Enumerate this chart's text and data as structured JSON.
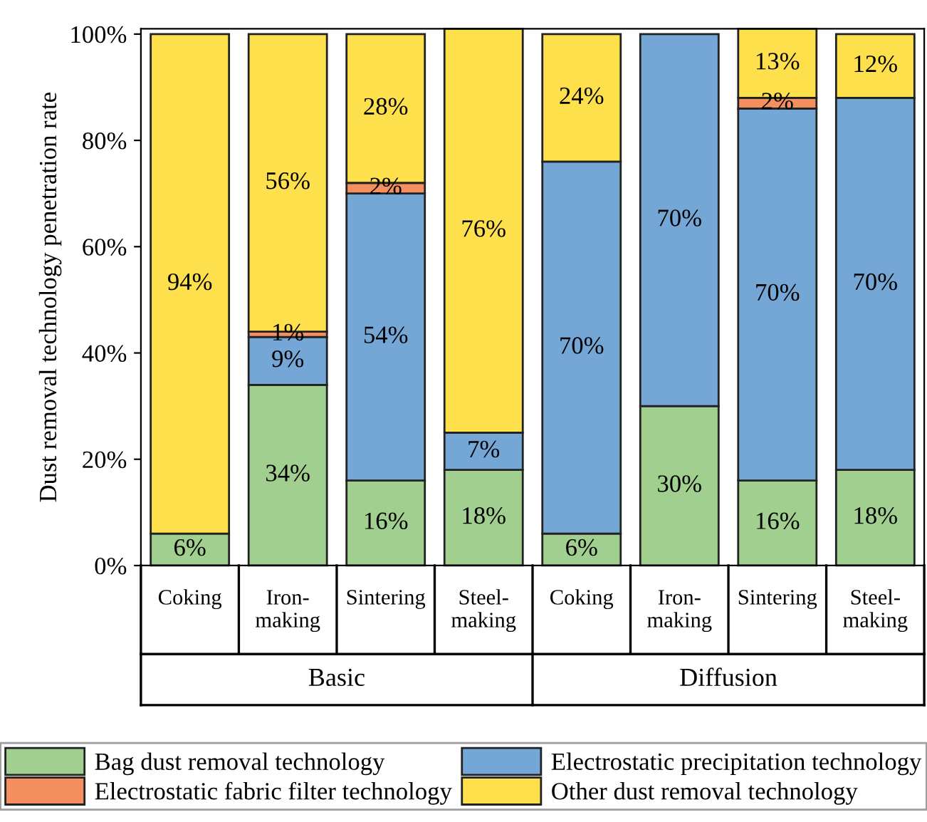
{
  "chart_data": {
    "type": "bar",
    "stacked": true,
    "ylabel": "Dust removal technology penetration rate",
    "categories": [
      "Coking",
      "Iron-\nmaking",
      "Sintering",
      "Steel-\nmaking",
      "Coking",
      "Iron-\nmaking",
      "Sintering",
      "Steel-\nmaking"
    ],
    "annotations": [
      "Basic",
      "Diffusion"
    ],
    "series": [
      {
        "name": "Bag dust removal technology",
        "color": "#a1cf8f",
        "values": [
          6,
          34,
          16,
          18,
          6,
          30,
          16,
          18
        ],
        "value_labels": [
          "6%",
          "34%",
          "16%",
          "18%",
          "6%",
          "30%",
          "16%",
          "18%"
        ]
      },
      {
        "name": "Electrostatic precipitation technology",
        "color": "#74a7d6",
        "values": [
          0,
          9,
          54,
          7,
          70,
          70,
          70,
          70
        ],
        "value_labels": [
          null,
          "9%",
          "54%",
          "7%",
          "70%",
          "70%",
          "70%",
          "70%"
        ]
      },
      {
        "name": "Electrostatic fabric filter technology",
        "color": "#f4905f",
        "values": [
          0,
          1,
          2,
          0,
          0,
          0,
          2,
          0
        ],
        "value_labels": [
          null,
          "1%",
          "2%",
          null,
          null,
          null,
          "2%",
          null
        ]
      },
      {
        "name": "Other dust removal technology",
        "color": "#fde04c",
        "values": [
          94,
          56,
          28,
          76,
          24,
          0,
          13,
          12
        ],
        "value_labels": [
          "94%",
          "56%",
          "28%",
          "76%",
          "24%",
          null,
          "13%",
          "12%"
        ]
      }
    ],
    "ylim": [
      0,
      101
    ],
    "yticks": [
      {
        "value": 0,
        "label": "0%"
      },
      {
        "value": 20,
        "label": "20%"
      },
      {
        "value": 40,
        "label": "40%"
      },
      {
        "value": 60,
        "label": "60%"
      },
      {
        "value": 80,
        "label": "80%"
      },
      {
        "value": 100,
        "label": "100%"
      }
    ],
    "grid": false,
    "legend": "bottom"
  }
}
